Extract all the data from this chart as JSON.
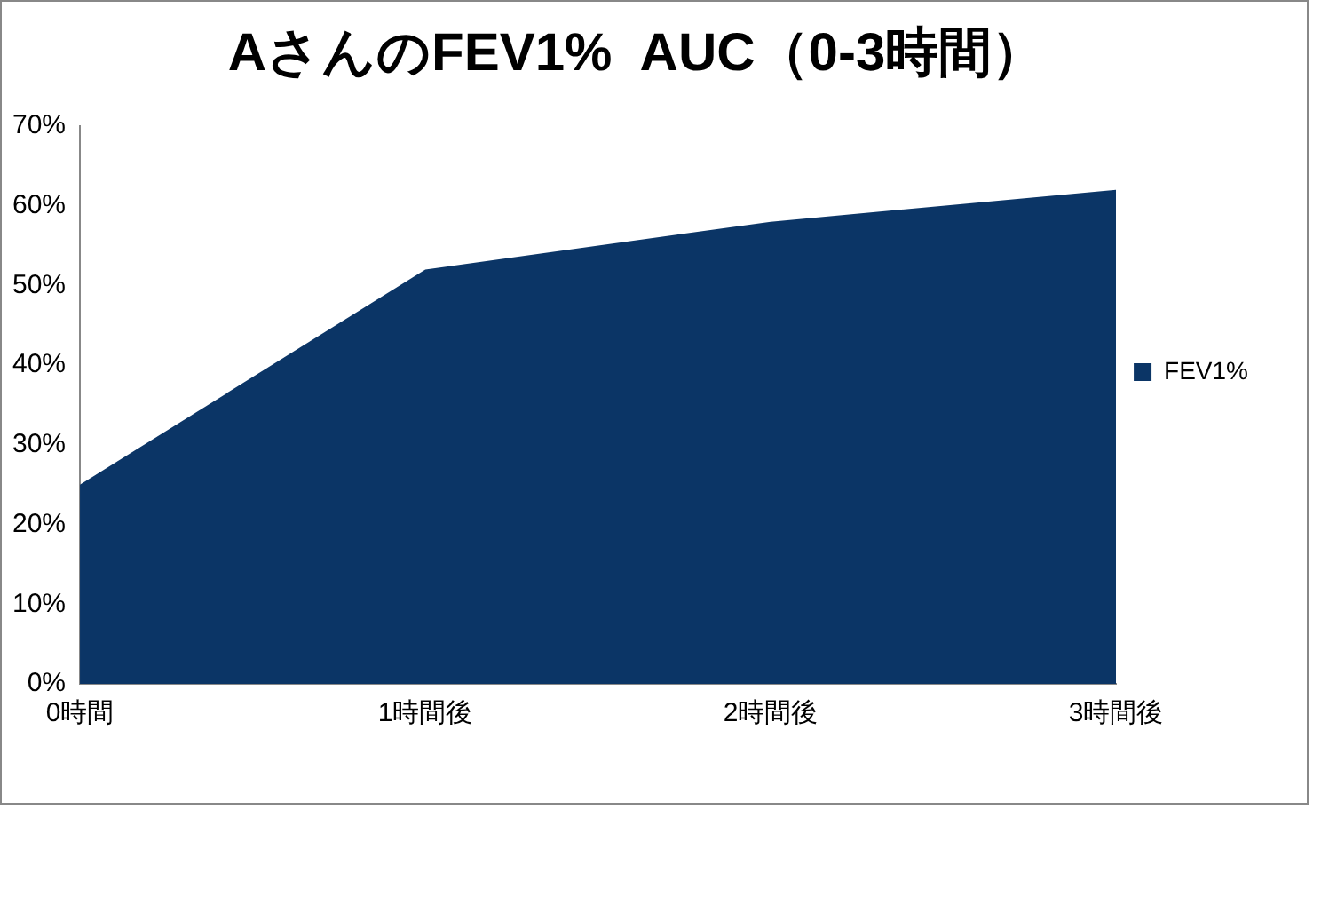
{
  "chart_data": {
    "type": "area",
    "title": "AさんのFEV1%  AUC（0-3時間）",
    "categories": [
      "0時間",
      "1時間後",
      "2時間後",
      "3時間後"
    ],
    "series": [
      {
        "name": "FEV1%",
        "color": "#0b3566",
        "values": [
          25,
          52,
          58,
          62
        ]
      }
    ],
    "ylim": [
      0,
      70
    ],
    "yticks": [
      {
        "value": 0,
        "label": "0%"
      },
      {
        "value": 10,
        "label": "10%"
      },
      {
        "value": 20,
        "label": "20%"
      },
      {
        "value": 30,
        "label": "30%"
      },
      {
        "value": 40,
        "label": "40%"
      },
      {
        "value": 50,
        "label": "50%"
      },
      {
        "value": 60,
        "label": "60%"
      },
      {
        "value": 70,
        "label": "70%"
      }
    ],
    "grid": false,
    "legend": "right"
  }
}
